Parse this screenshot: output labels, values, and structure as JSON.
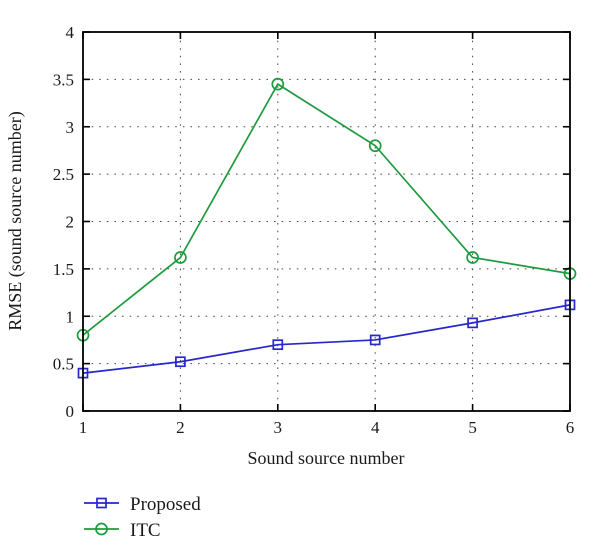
{
  "chart_data": {
    "type": "line",
    "x": [
      1,
      2,
      3,
      4,
      5,
      6
    ],
    "series": [
      {
        "name": "Proposed",
        "values": [
          0.4,
          0.52,
          0.7,
          0.75,
          0.93,
          1.12
        ],
        "color": "#2727cc",
        "marker": "square"
      },
      {
        "name": "ITC",
        "values": [
          0.8,
          1.62,
          3.45,
          2.8,
          1.62,
          1.45
        ],
        "color": "#1e9b3e",
        "marker": "circle"
      }
    ],
    "title": "",
    "xlabel": "Sound source number",
    "ylabel": "RMSE (sound source number)",
    "xlim": [
      1,
      6
    ],
    "ylim": [
      0,
      4
    ],
    "x_ticks": [
      1,
      2,
      3,
      4,
      5,
      6
    ],
    "y_ticks": [
      0,
      0.5,
      1,
      1.5,
      2,
      2.5,
      3,
      3.5,
      4
    ],
    "grid": "dotted",
    "grid_color": "#4a4a4a",
    "axis_color": "#000000",
    "text_color": "#1a1a1a",
    "legend_position": "below-left",
    "background": "#ffffff"
  }
}
